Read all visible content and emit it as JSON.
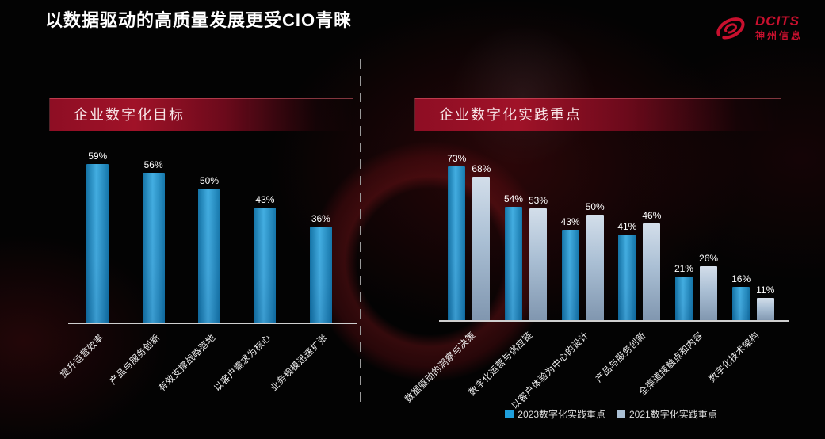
{
  "page": {
    "title": "以数据驱动的高质量发展更受CIO青睐"
  },
  "logo": {
    "brand": "DCITS",
    "company": "神州信息"
  },
  "colors": {
    "logo_red": "#c8102e",
    "header_red": "#a01228",
    "bar_2023": "#1f9fdc",
    "bar_2021": "#aabfd4",
    "axis_line": "#cfcfcf",
    "background": "#030303",
    "text": "#ffffff"
  },
  "chart_data": [
    {
      "type": "bar",
      "title": "企业数字化目标",
      "categories": [
        "提升运营效率",
        "产品与服务创新",
        "有效支撑战略落地",
        "以客户需求为核心",
        "业务规模迅速扩张"
      ],
      "values": [
        59,
        56,
        50,
        43,
        36
      ],
      "unit": "%",
      "bar_color": "#1f9fdc",
      "xlabel": "",
      "ylabel": "",
      "ylim": [
        0,
        65
      ],
      "grid": false,
      "data_labels": true,
      "legend_position": "none"
    },
    {
      "type": "bar",
      "title": "企业数字化实践重点",
      "categories": [
        "数据驱动的洞察与决策",
        "数字化运营与供应链",
        "以客户体验为中心的设计",
        "产品与服务创新",
        "全渠道接触点和内容",
        "数字化技术架构"
      ],
      "series": [
        {
          "name": "2023数字化实践重点",
          "values": [
            73,
            54,
            43,
            41,
            21,
            16
          ],
          "color": "#1f9fdc"
        },
        {
          "name": "2021数字化实践重点",
          "values": [
            68,
            53,
            50,
            46,
            26,
            11
          ],
          "color": "#aabfd4"
        }
      ],
      "unit": "%",
      "xlabel": "",
      "ylabel": "",
      "ylim": [
        0,
        80
      ],
      "grid": false,
      "data_labels": true,
      "legend_position": "bottom"
    }
  ]
}
